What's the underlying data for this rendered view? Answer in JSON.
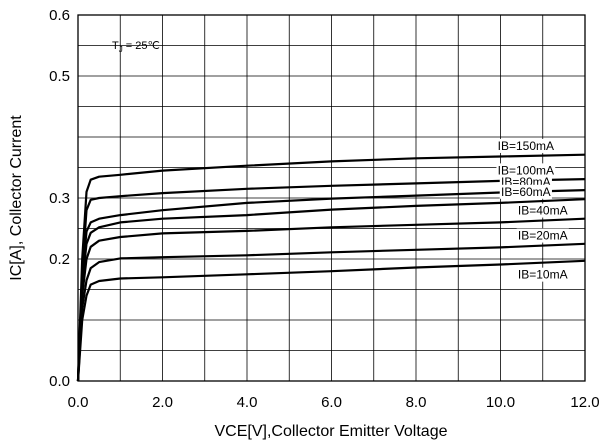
{
  "chart_data": {
    "type": "line",
    "title": "",
    "xlabel": "VCE[V],Collector Emitter Voltage",
    "ylabel": "IC[A], Collector Current",
    "xlim": [
      0,
      12
    ],
    "ylim": [
      0,
      0.6
    ],
    "x_ticks": [
      0,
      1,
      2,
      3,
      4,
      5,
      6,
      7,
      8,
      9,
      10,
      11,
      12
    ],
    "x_tick_labels": [
      "0.0",
      "",
      "2.0",
      "",
      "4.0",
      "",
      "6.0",
      "",
      "8.0",
      "",
      "10.0",
      "",
      "12.0"
    ],
    "y_ticks": [
      0,
      0.05,
      0.1,
      0.15,
      0.2,
      0.25,
      0.3,
      0.35,
      0.4,
      0.45,
      0.5,
      0.55,
      0.6
    ],
    "y_tick_labels": [
      "0.0",
      "",
      "",
      "",
      "0.2",
      "",
      "0.3",
      "",
      "",
      "",
      "0.5",
      "",
      "0.6"
    ],
    "grid": true,
    "legend": "none",
    "annotation": {
      "text": "T",
      "subscript": "J",
      "suffix": " = 25℃"
    },
    "series": [
      {
        "name": "IB=150mA",
        "x": [
          0,
          0.1,
          0.2,
          0.3,
          0.5,
          1,
          2,
          4,
          6,
          8,
          10,
          12
        ],
        "y": [
          0,
          0.2,
          0.31,
          0.33,
          0.335,
          0.338,
          0.345,
          0.353,
          0.36,
          0.365,
          0.368,
          0.371
        ]
      },
      {
        "name": "IB=100mA",
        "x": [
          0,
          0.1,
          0.2,
          0.3,
          0.5,
          1,
          2,
          4,
          6,
          8,
          10,
          12
        ],
        "y": [
          0,
          0.18,
          0.28,
          0.297,
          0.3,
          0.303,
          0.308,
          0.315,
          0.32,
          0.324,
          0.328,
          0.331
        ]
      },
      {
        "name": "IB=80mA",
        "x": [
          0,
          0.1,
          0.2,
          0.3,
          0.5,
          1,
          2,
          4,
          6,
          8,
          10,
          12
        ],
        "y": [
          0,
          0.17,
          0.245,
          0.26,
          0.266,
          0.272,
          0.28,
          0.292,
          0.299,
          0.304,
          0.309,
          0.313
        ]
      },
      {
        "name": "IB=60mA",
        "x": [
          0,
          0.1,
          0.2,
          0.3,
          0.5,
          1,
          2,
          4,
          6,
          8,
          10,
          12
        ],
        "y": [
          0,
          0.16,
          0.225,
          0.243,
          0.252,
          0.26,
          0.266,
          0.272,
          0.281,
          0.287,
          0.292,
          0.298
        ]
      },
      {
        "name": "IB=40mA",
        "x": [
          0,
          0.1,
          0.2,
          0.3,
          0.5,
          1,
          2,
          4,
          6,
          8,
          10,
          12
        ],
        "y": [
          0,
          0.14,
          0.2,
          0.22,
          0.23,
          0.236,
          0.242,
          0.246,
          0.252,
          0.256,
          0.26,
          0.266
        ]
      },
      {
        "name": "IB=20mA",
        "x": [
          0,
          0.1,
          0.2,
          0.3,
          0.5,
          1,
          2,
          4,
          6,
          8,
          10,
          12
        ],
        "y": [
          0,
          0.12,
          0.165,
          0.185,
          0.195,
          0.201,
          0.203,
          0.206,
          0.211,
          0.215,
          0.219,
          0.225
        ]
      },
      {
        "name": "IB=10mA",
        "x": [
          0,
          0.1,
          0.2,
          0.3,
          0.5,
          1,
          2,
          4,
          6,
          8,
          10,
          12
        ],
        "y": [
          0,
          0.1,
          0.14,
          0.158,
          0.164,
          0.168,
          0.17,
          0.175,
          0.18,
          0.186,
          0.191,
          0.197
        ]
      }
    ]
  }
}
